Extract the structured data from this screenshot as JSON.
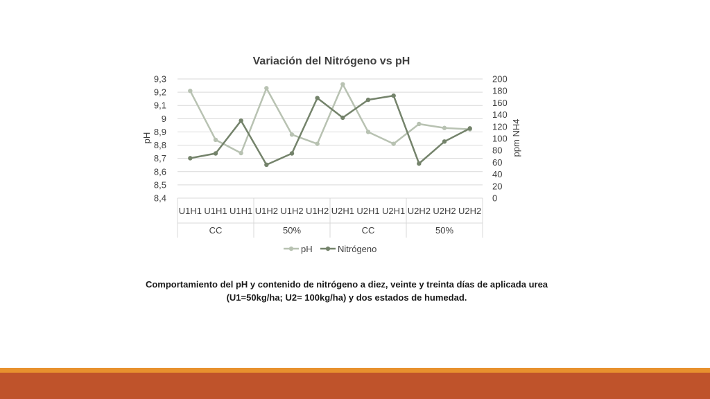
{
  "colors": {
    "ph_line": "#b8c2b2",
    "nitrogen_line": "#74836b",
    "grid": "#d9d9d9",
    "band_light": "#e8912e",
    "band_dark": "#bf532b",
    "text": "#404040"
  },
  "chart_data": {
    "type": "line",
    "title": "Variación del Nitrógeno vs pH",
    "ylabel": "pH",
    "y2label": "ppm NH4",
    "ylim": [
      8.4,
      9.3
    ],
    "y2lim": [
      0,
      200
    ],
    "yticks": [
      "9,3",
      "9,2",
      "9,1",
      "9",
      "8,9",
      "8,8",
      "8,7",
      "8,6",
      "8,5",
      "8,4"
    ],
    "y2ticks": [
      "200",
      "180",
      "160",
      "140",
      "120",
      "100",
      "80",
      "60",
      "40",
      "20",
      "0"
    ],
    "categories": [
      "U1H1",
      "U1H1",
      "U1H1",
      "U1H2",
      "U1H2",
      "U1H2",
      "U2H1",
      "U2H1",
      "U2H1",
      "U2H2",
      "U2H2",
      "U2H2"
    ],
    "groups": [
      "CC",
      "50%",
      "CC",
      "50%"
    ],
    "series": [
      {
        "name": "pH",
        "axis": "left",
        "values": [
          9.21,
          8.84,
          8.74,
          9.23,
          8.88,
          8.81,
          9.26,
          8.9,
          8.81,
          8.96,
          8.93,
          8.92
        ]
      },
      {
        "name": "Nitrógeno",
        "axis": "right",
        "values": [
          67,
          75,
          130,
          56,
          75,
          168,
          135,
          165,
          172,
          58,
          95,
          117
        ]
      }
    ],
    "legend_position": "bottom",
    "grid": true
  },
  "caption": {
    "line1": "Comportamiento del pH y contenido de nitrógeno a diez, veinte y treinta días de aplicada urea",
    "line2": "(U1=50kg/ha; U2= 100kg/ha) y dos estados de humedad."
  }
}
